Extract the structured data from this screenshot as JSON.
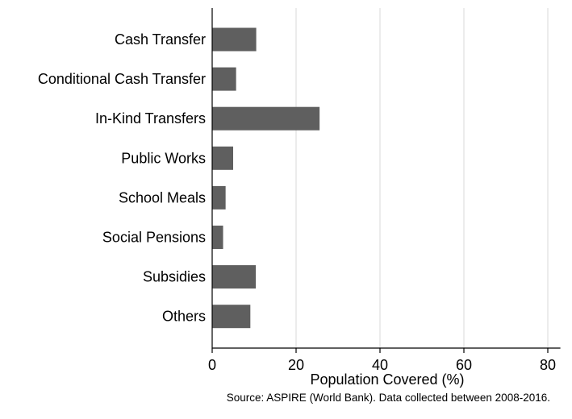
{
  "chart_data": {
    "type": "bar",
    "orientation": "horizontal",
    "categories": [
      "Cash Transfer",
      "Conditional Cash Transfer",
      "In-Kind Transfers",
      "Public Works",
      "School Meals",
      "Social Pensions",
      "Subsidies",
      "Others"
    ],
    "values": [
      10.5,
      5.7,
      25.6,
      5.0,
      3.2,
      2.6,
      10.4,
      9.1
    ],
    "xlabel": "Population Covered (%)",
    "ylabel": "",
    "xlim": [
      0,
      83
    ],
    "xticks": [
      0,
      20,
      40,
      60,
      80
    ],
    "grid": "vertical",
    "legend": "none",
    "bar_color": "#5f5f5f",
    "grid_color": "#e6e6e6",
    "axis_color": "#000000",
    "note": "Source: ASPIRE (World Bank). Data collected between 2008-2016."
  }
}
